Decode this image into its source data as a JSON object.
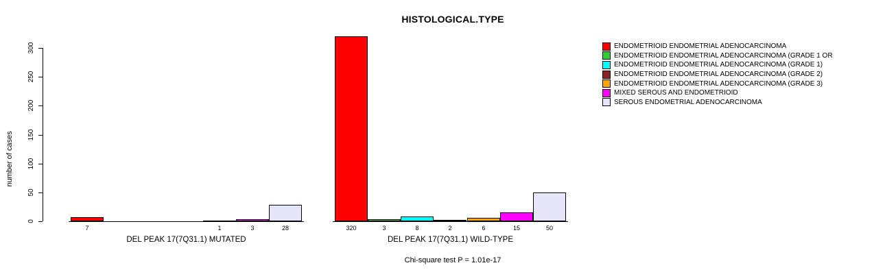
{
  "footnote": "Chi-square test P = 1.01e-17",
  "chart_data": {
    "type": "bar",
    "title": "HISTOLOGICAL.TYPE",
    "xlabel": "",
    "ylabel": "number of cases",
    "yticks": [
      0,
      50,
      100,
      150,
      200,
      250,
      300
    ],
    "ylim": [
      0,
      320
    ],
    "grid": false,
    "legend_position": "right",
    "series": [
      {
        "name": "ENDOMETRIOID ENDOMETRIAL ADENOCARCINOMA",
        "color": "#FF0000"
      },
      {
        "name": "ENDOMETRIOID ENDOMETRIAL ADENOCARCINOMA (GRADE 1 OR",
        "color": "#32CD32"
      },
      {
        "name": "ENDOMETRIOID ENDOMETRIAL ADENOCARCINOMA (GRADE 1)",
        "color": "#00FFFF"
      },
      {
        "name": "ENDOMETRIOID ENDOMETRIAL ADENOCARCINOMA (GRADE 2)",
        "color": "#8B2323"
      },
      {
        "name": "ENDOMETRIOID ENDOMETRIAL ADENOCARCINOMA (GRADE 3)",
        "color": "#FFA500"
      },
      {
        "name": "MIXED SEROUS AND ENDOMETRIOID",
        "color": "#FF00FF"
      },
      {
        "name": "SEROUS ENDOMETRIAL ADENOCARCINOMA",
        "color": "#E6E6FA"
      }
    ],
    "groups": [
      {
        "label": "DEL PEAK 17(7Q31.1) MUTATED",
        "values": [
          7,
          0,
          0,
          0,
          1,
          3,
          28
        ],
        "value_labels": [
          "7",
          "",
          "",
          "",
          "1",
          "3",
          "28"
        ]
      },
      {
        "label": "DEL PEAK 17(7Q31.1) WILD-TYPE",
        "values": [
          320,
          3,
          8,
          2,
          6,
          15,
          50
        ],
        "value_labels": [
          "320",
          "3",
          "8",
          "2",
          "6",
          "15",
          "50"
        ]
      }
    ]
  }
}
